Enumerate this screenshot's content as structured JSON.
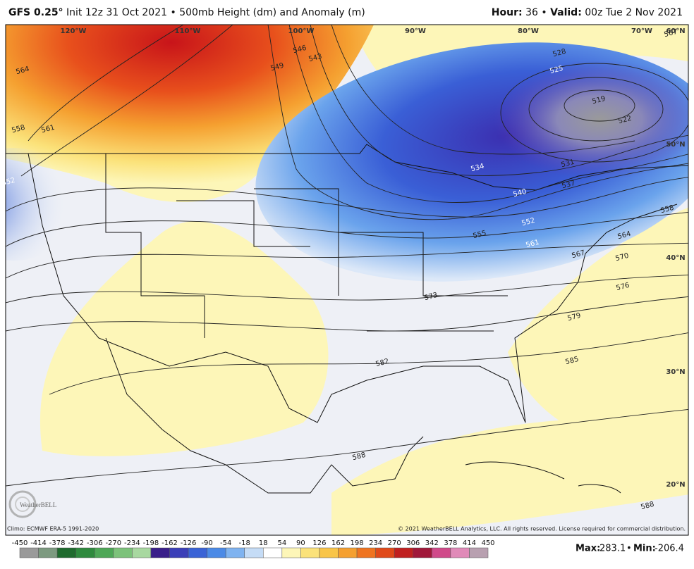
{
  "header": {
    "model": "GFS 0.25°",
    "init": "Init 12z 31 Oct 2021",
    "separator": "•",
    "field": "500mb Height (dm) and Anomaly (m)",
    "hour_label": "Hour:",
    "hour": 36,
    "valid_label": "Valid:",
    "valid": "00z Tue 2 Nov 2021"
  },
  "map": {
    "longitude_labels": [
      "120°W",
      "110°W",
      "100°W",
      "90°W",
      "80°W",
      "70°W",
      "60°N"
    ],
    "latitude_labels": [
      "50°N",
      "40°N",
      "30°N",
      "20°N"
    ],
    "contour_labels": [
      564,
      558,
      561,
      552,
      549,
      546,
      543,
      528,
      525,
      519,
      522,
      531,
      537,
      534,
      540,
      555,
      552,
      561,
      567,
      564,
      558,
      570,
      573,
      576,
      579,
      582,
      585,
      588,
      588,
      567
    ]
  },
  "logo": "WeatherBELL",
  "footer": {
    "climo": "Climo: ECMWF ERA-5 1991-2020",
    "copyright": "© 2021 WeatherBELL Analytics, LLC. All rights reserved. License required for commercial distribution."
  },
  "colorbar": {
    "ticks": [
      -450,
      -414,
      -378,
      -342,
      -306,
      -270,
      -234,
      -198,
      -162,
      -126,
      -90,
      -54,
      -18,
      18,
      54,
      90,
      126,
      162,
      198,
      234,
      270,
      306,
      342,
      378,
      414,
      450
    ],
    "colors": [
      "#9a9a9a",
      "#7d9a80",
      "#1f6b2e",
      "#2f8a3e",
      "#4ea757",
      "#7cc27a",
      "#a8d8a0",
      "#3a1f8a",
      "#3b3fb8",
      "#3a63d6",
      "#4b8ae6",
      "#7fb3f0",
      "#c5dcf6",
      "#ffffff",
      "#fdf6b8",
      "#fbe27a",
      "#f9c548",
      "#f5a030",
      "#ef7420",
      "#e04a1a",
      "#c02020",
      "#a0183a",
      "#d04a8a",
      "#e08ab8",
      "#b8a0b0"
    ]
  },
  "stats": {
    "max_label": "Max:",
    "max": 283.1,
    "min_label": "Min:",
    "min": -206.4,
    "separator": "•"
  }
}
